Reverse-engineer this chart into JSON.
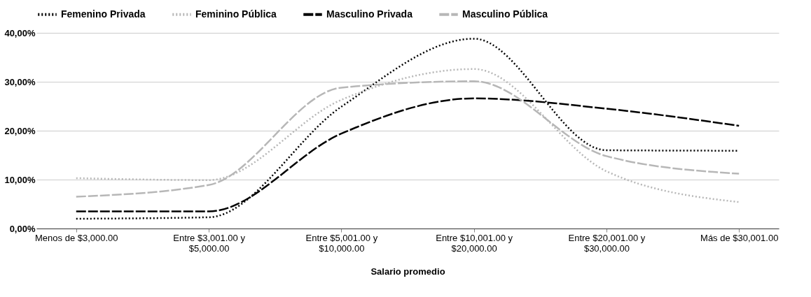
{
  "chart_data": {
    "type": "line",
    "xlabel": "Salario promedio",
    "categories": [
      "Menos de $3,000.00",
      "Entre $3,001.00 y $5,000.00",
      "Entre $5,001.00 y $10,000.00",
      "Entre $10,001.00 y $20,000.00",
      "Entre $20,001.00 y $30,000.00",
      "Más de $30,001.00"
    ],
    "series": [
      {
        "name": "Femenino Privada",
        "color": "#000000",
        "line_style": "dotted",
        "values": [
          2.0,
          2.3,
          24.9,
          38.8,
          16.0,
          15.9
        ]
      },
      {
        "name": "Feminino Pública",
        "color": "#b7b7b7",
        "line_style": "dotted",
        "values": [
          10.3,
          9.9,
          26.3,
          32.6,
          11.7,
          5.4
        ]
      },
      {
        "name": "Masculino Privada",
        "color": "#000000",
        "line_style": "dashed",
        "values": [
          3.5,
          3.5,
          19.4,
          26.6,
          24.5,
          21.0
        ]
      },
      {
        "name": "Masculino Pública",
        "color": "#b7b7b7",
        "line_style": "dashed",
        "values": [
          6.5,
          8.9,
          28.8,
          30.1,
          14.8,
          11.2
        ]
      }
    ],
    "ylim": [
      0,
      40
    ],
    "yticks": [
      {
        "value": 0,
        "label": "0,00%"
      },
      {
        "value": 10,
        "label": "10,00%"
      },
      {
        "value": 20,
        "label": "20,00%"
      },
      {
        "value": 30,
        "label": "30,00%"
      },
      {
        "value": 40,
        "label": "40,00%"
      }
    ],
    "grid": "y",
    "legend": "top",
    "marker": "none"
  }
}
